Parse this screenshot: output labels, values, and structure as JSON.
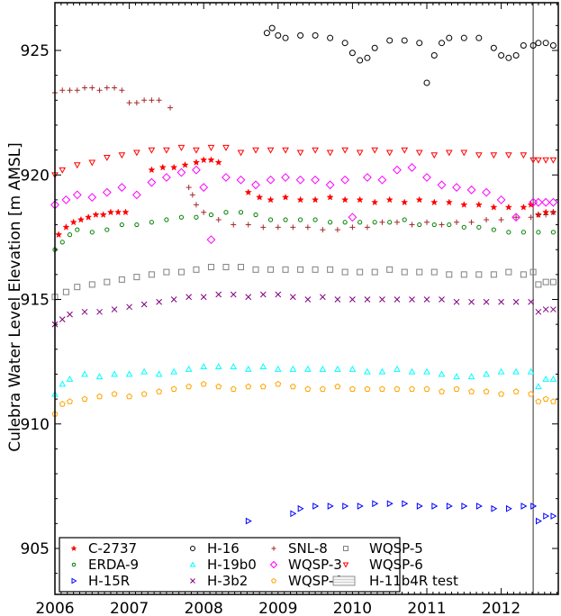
{
  "chart_data": {
    "type": "scatter",
    "title": "",
    "xlabel": "",
    "ylabel": "Culebra Water Level Elevation [m AMSL]",
    "xlim": [
      2006.0,
      2012.78
    ],
    "ylim": [
      903.1,
      927.0
    ],
    "xticks": [
      2006,
      2007,
      2008,
      2009,
      2010,
      2011,
      2012
    ],
    "xtick_labels": [
      "2006",
      "2007",
      "2008",
      "2009",
      "2010",
      "2011",
      "2012"
    ],
    "yticks": [
      905,
      910,
      915,
      920,
      925
    ],
    "ytick_labels": [
      "905",
      "910",
      "915",
      "920",
      "925"
    ],
    "grid": false,
    "legend_position": "lower left",
    "annotations": [
      {
        "type": "vertical-line",
        "x": 2012.43,
        "label": "H-11b4R test",
        "color": "#555555"
      }
    ],
    "series": [
      {
        "name": "C-2737",
        "marker": "star",
        "color": "#ff0000",
        "x": [
          2006.05,
          2006.15,
          2006.25,
          2006.35,
          2006.45,
          2006.55,
          2006.65,
          2006.75,
          2006.85,
          2006.95,
          2007.3,
          2007.45,
          2007.6,
          2007.75,
          2007.9,
          2008.0,
          2008.1,
          2008.2,
          2008.6,
          2008.75,
          2008.9,
          2009.1,
          2009.3,
          2009.5,
          2009.7,
          2009.9,
          2010.1,
          2010.3,
          2010.5,
          2010.7,
          2010.9,
          2011.1,
          2011.3,
          2011.5,
          2011.7,
          2011.9,
          2012.1,
          2012.3,
          2012.4,
          2012.5,
          2012.6,
          2012.7
        ],
        "y": [
          917.6,
          917.9,
          918.1,
          918.2,
          918.3,
          918.4,
          918.4,
          918.5,
          918.5,
          918.5,
          920.2,
          920.3,
          920.3,
          920.4,
          920.5,
          920.6,
          920.6,
          920.5,
          919.3,
          919.1,
          919.0,
          919.1,
          919.0,
          919.0,
          919.1,
          919.0,
          919.0,
          918.9,
          919.0,
          918.9,
          919.0,
          918.9,
          918.9,
          918.8,
          918.8,
          918.7,
          918.7,
          918.7,
          918.8,
          918.4,
          918.5,
          918.5
        ]
      },
      {
        "name": "ERDA-9",
        "marker": "hexagon",
        "color": "#008000",
        "x": [
          2006.0,
          2006.1,
          2006.2,
          2006.3,
          2006.5,
          2006.7,
          2006.9,
          2007.1,
          2007.3,
          2007.5,
          2007.7,
          2007.9,
          2008.1,
          2008.3,
          2008.5,
          2008.7,
          2008.9,
          2009.1,
          2009.3,
          2009.5,
          2009.7,
          2009.9,
          2010.1,
          2010.3,
          2010.5,
          2010.7,
          2010.9,
          2011.1,
          2011.3,
          2011.5,
          2011.7,
          2011.9,
          2012.1,
          2012.3,
          2012.5,
          2012.7
        ],
        "y": [
          917.0,
          917.3,
          917.6,
          917.8,
          917.7,
          917.8,
          918.0,
          918.0,
          918.1,
          918.2,
          918.3,
          918.3,
          918.4,
          918.5,
          918.5,
          918.4,
          918.2,
          918.2,
          918.2,
          918.2,
          918.1,
          918.1,
          918.1,
          918.1,
          918.1,
          918.2,
          918.0,
          918.0,
          918.0,
          917.9,
          917.9,
          917.8,
          917.7,
          917.7,
          917.7,
          917.7
        ]
      },
      {
        "name": "H-15R",
        "marker": "triangle-right",
        "color": "#0000ff",
        "x": [
          2008.6,
          2009.2,
          2009.3,
          2009.5,
          2009.7,
          2009.9,
          2010.1,
          2010.3,
          2010.5,
          2010.7,
          2010.9,
          2011.1,
          2011.3,
          2011.5,
          2011.7,
          2011.9,
          2012.1,
          2012.3,
          2012.43,
          2012.5,
          2012.6,
          2012.7
        ],
        "y": [
          906.1,
          906.4,
          906.6,
          906.7,
          906.7,
          906.7,
          906.7,
          906.8,
          906.8,
          906.8,
          906.7,
          906.7,
          906.7,
          906.7,
          906.7,
          906.6,
          906.6,
          906.7,
          906.7,
          906.1,
          906.3,
          906.3
        ]
      },
      {
        "name": "H-16",
        "marker": "circle",
        "color": "#000000",
        "x": [
          2008.85,
          2008.92,
          2009.0,
          2009.1,
          2009.3,
          2009.5,
          2009.7,
          2009.9,
          2010.0,
          2010.1,
          2010.2,
          2010.3,
          2010.5,
          2010.7,
          2010.9,
          2011.0,
          2011.1,
          2011.2,
          2011.3,
          2011.5,
          2011.7,
          2011.9,
          2012.0,
          2012.1,
          2012.2,
          2012.3,
          2012.43,
          2012.5,
          2012.6,
          2012.7
        ],
        "y": [
          925.7,
          925.9,
          925.6,
          925.5,
          925.6,
          925.6,
          925.5,
          925.3,
          924.9,
          924.6,
          924.7,
          925.1,
          925.4,
          925.4,
          925.3,
          923.7,
          924.8,
          925.3,
          925.5,
          925.5,
          925.5,
          925.1,
          924.8,
          924.7,
          924.8,
          925.2,
          925.2,
          925.3,
          925.3,
          925.2
        ]
      },
      {
        "name": "H-19b0",
        "marker": "triangle-up",
        "color": "#00ffff",
        "x": [
          2006.0,
          2006.1,
          2006.2,
          2006.4,
          2006.6,
          2006.8,
          2007.0,
          2007.2,
          2007.4,
          2007.6,
          2007.8,
          2008.0,
          2008.2,
          2008.4,
          2008.6,
          2008.8,
          2009.0,
          2009.2,
          2009.4,
          2009.6,
          2009.8,
          2010.0,
          2010.2,
          2010.4,
          2010.6,
          2010.8,
          2011.0,
          2011.2,
          2011.4,
          2011.6,
          2011.8,
          2012.0,
          2012.2,
          2012.4,
          2012.5,
          2012.6,
          2012.7
        ],
        "y": [
          911.2,
          911.6,
          911.8,
          912.0,
          911.9,
          912.0,
          912.0,
          912.1,
          912.0,
          912.1,
          912.2,
          912.3,
          912.3,
          912.3,
          912.2,
          912.3,
          912.2,
          912.2,
          912.2,
          912.2,
          912.2,
          912.2,
          912.1,
          912.1,
          912.2,
          912.1,
          912.1,
          912.0,
          911.9,
          911.9,
          912.0,
          912.1,
          912.1,
          912.1,
          911.5,
          911.8,
          911.8
        ]
      },
      {
        "name": "H-3b2",
        "marker": "x",
        "color": "#800080",
        "x": [
          2006.0,
          2006.1,
          2006.2,
          2006.4,
          2006.6,
          2006.8,
          2007.0,
          2007.2,
          2007.4,
          2007.6,
          2007.8,
          2008.0,
          2008.2,
          2008.4,
          2008.6,
          2008.8,
          2009.0,
          2009.2,
          2009.4,
          2009.6,
          2009.8,
          2010.0,
          2010.2,
          2010.4,
          2010.6,
          2010.8,
          2011.0,
          2011.2,
          2011.4,
          2011.6,
          2011.8,
          2012.0,
          2012.2,
          2012.4,
          2012.5,
          2012.6,
          2012.7
        ],
        "y": [
          914.0,
          914.2,
          914.4,
          914.5,
          914.5,
          914.6,
          914.7,
          914.8,
          914.9,
          915.0,
          915.1,
          915.1,
          915.2,
          915.2,
          915.1,
          915.2,
          915.2,
          915.1,
          915.0,
          915.1,
          915.0,
          915.0,
          915.0,
          915.0,
          915.0,
          915.0,
          915.0,
          915.0,
          914.9,
          914.9,
          914.9,
          914.9,
          914.9,
          914.9,
          914.5,
          914.6,
          914.6
        ]
      },
      {
        "name": "SNL-8",
        "marker": "plus",
        "color": "#a52a2a",
        "x": [
          2006.0,
          2006.1,
          2006.2,
          2006.3,
          2006.4,
          2006.5,
          2006.6,
          2006.7,
          2006.8,
          2006.9,
          2007.0,
          2007.1,
          2007.2,
          2007.3,
          2007.4,
          2007.55,
          2007.8,
          2007.85,
          2007.9,
          2008.0,
          2008.2,
          2008.4,
          2008.6,
          2008.8,
          2009.0,
          2009.2,
          2009.4,
          2009.6,
          2009.8,
          2010.0,
          2010.2,
          2010.4,
          2010.6,
          2010.8,
          2011.0,
          2011.2,
          2011.4,
          2011.6,
          2011.8,
          2012.0,
          2012.2,
          2012.4,
          2012.5,
          2012.6,
          2012.7
        ],
        "y": [
          923.3,
          923.4,
          923.4,
          923.4,
          923.5,
          923.5,
          923.4,
          923.5,
          923.5,
          923.4,
          922.9,
          922.9,
          923.0,
          923.0,
          923.0,
          922.7,
          919.5,
          919.2,
          918.8,
          918.5,
          918.2,
          918.0,
          918.0,
          917.9,
          917.9,
          917.9,
          917.9,
          917.8,
          917.8,
          917.9,
          917.9,
          918.1,
          918.1,
          918.0,
          918.1,
          918.0,
          918.1,
          918.1,
          918.2,
          918.2,
          918.3,
          918.3,
          918.4,
          918.4,
          918.5
        ]
      },
      {
        "name": "WQSP-3",
        "marker": "diamond",
        "color": "#ff00ff",
        "x": [
          2006.0,
          2006.15,
          2006.3,
          2006.5,
          2006.7,
          2006.9,
          2007.1,
          2007.3,
          2007.5,
          2007.7,
          2007.9,
          2008.0,
          2008.1,
          2008.3,
          2008.5,
          2008.7,
          2008.9,
          2009.1,
          2009.3,
          2009.5,
          2009.7,
          2009.9,
          2010.0,
          2010.2,
          2010.4,
          2010.6,
          2010.8,
          2011.0,
          2011.2,
          2011.4,
          2011.6,
          2011.8,
          2012.0,
          2012.2,
          2012.43,
          2012.5,
          2012.6,
          2012.7
        ],
        "y": [
          918.8,
          919.0,
          919.2,
          919.1,
          919.3,
          919.5,
          919.2,
          919.7,
          919.9,
          920.1,
          920.2,
          919.5,
          917.4,
          919.9,
          919.8,
          919.6,
          919.8,
          919.9,
          919.8,
          919.8,
          919.6,
          919.8,
          918.3,
          919.9,
          919.8,
          920.2,
          920.3,
          919.9,
          919.6,
          919.5,
          919.4,
          919.3,
          919.0,
          918.3,
          918.9,
          918.9,
          918.9,
          918.9
        ]
      },
      {
        "name": "WQSP-4",
        "marker": "pentagon",
        "color": "#ffa500",
        "x": [
          2006.0,
          2006.1,
          2006.2,
          2006.4,
          2006.6,
          2006.8,
          2007.0,
          2007.2,
          2007.4,
          2007.6,
          2007.8,
          2008.0,
          2008.2,
          2008.4,
          2008.6,
          2008.8,
          2009.0,
          2009.2,
          2009.4,
          2009.6,
          2009.8,
          2010.0,
          2010.2,
          2010.4,
          2010.6,
          2010.8,
          2011.0,
          2011.2,
          2011.4,
          2011.6,
          2011.8,
          2012.0,
          2012.2,
          2012.4,
          2012.5,
          2012.6,
          2012.7
        ],
        "y": [
          910.4,
          910.8,
          910.9,
          911.0,
          911.1,
          911.2,
          911.1,
          911.2,
          911.3,
          911.4,
          911.5,
          911.6,
          911.5,
          911.4,
          911.5,
          911.5,
          911.6,
          911.5,
          911.4,
          911.4,
          911.5,
          911.4,
          911.4,
          911.4,
          911.4,
          911.4,
          911.4,
          911.3,
          911.4,
          911.3,
          911.3,
          911.2,
          911.3,
          911.2,
          910.9,
          911.0,
          910.9
        ]
      },
      {
        "name": "WQSP-5",
        "marker": "square",
        "color": "#808080",
        "x": [
          2006.0,
          2006.15,
          2006.3,
          2006.5,
          2006.7,
          2006.9,
          2007.1,
          2007.3,
          2007.5,
          2007.7,
          2007.9,
          2008.1,
          2008.3,
          2008.5,
          2008.7,
          2008.9,
          2009.1,
          2009.3,
          2009.5,
          2009.7,
          2009.9,
          2010.1,
          2010.3,
          2010.5,
          2010.7,
          2010.9,
          2011.1,
          2011.3,
          2011.5,
          2011.7,
          2011.9,
          2012.1,
          2012.3,
          2012.43,
          2012.5,
          2012.6,
          2012.7
        ],
        "y": [
          915.1,
          915.3,
          915.5,
          915.6,
          915.7,
          915.8,
          915.9,
          916.0,
          916.1,
          916.1,
          916.2,
          916.3,
          916.3,
          916.3,
          916.2,
          916.2,
          916.2,
          916.2,
          916.2,
          916.2,
          916.1,
          916.1,
          916.1,
          916.2,
          916.1,
          916.1,
          916.1,
          916.0,
          916.0,
          916.0,
          916.0,
          916.1,
          916.0,
          916.1,
          915.6,
          915.7,
          915.7
        ]
      },
      {
        "name": "WQSP-6",
        "marker": "triangle-down",
        "color": "#ff0000",
        "x": [
          2006.0,
          2006.1,
          2006.3,
          2006.5,
          2006.7,
          2006.9,
          2007.1,
          2007.3,
          2007.5,
          2007.7,
          2007.9,
          2008.1,
          2008.3,
          2008.5,
          2008.7,
          2008.9,
          2009.1,
          2009.3,
          2009.5,
          2009.7,
          2009.9,
          2010.1,
          2010.3,
          2010.5,
          2010.7,
          2010.9,
          2011.1,
          2011.3,
          2011.5,
          2011.7,
          2011.9,
          2012.1,
          2012.3,
          2012.43,
          2012.5,
          2012.6,
          2012.7
        ],
        "y": [
          920.0,
          920.2,
          920.4,
          920.5,
          920.7,
          920.8,
          920.9,
          921.0,
          921.0,
          921.1,
          921.0,
          921.1,
          921.1,
          920.9,
          921.0,
          921.0,
          921.0,
          920.9,
          921.0,
          920.9,
          921.0,
          920.9,
          921.0,
          920.9,
          921.0,
          920.9,
          920.8,
          920.9,
          920.9,
          920.8,
          920.8,
          920.8,
          920.8,
          920.6,
          920.6,
          920.6,
          920.6
        ]
      }
    ]
  },
  "legend": {
    "items": [
      {
        "label": "C-2737"
      },
      {
        "label": "ERDA-9"
      },
      {
        "label": "H-15R"
      },
      {
        "label": "H-16"
      },
      {
        "label": "H-19b0"
      },
      {
        "label": "H-3b2"
      },
      {
        "label": "SNL-8"
      },
      {
        "label": "WQSP-3"
      },
      {
        "label": "WQSP-4"
      },
      {
        "label": "WQSP-5"
      },
      {
        "label": "WQSP-6"
      },
      {
        "label": "H-11b4R test"
      }
    ]
  },
  "axes": {
    "ylabel": "Culebra Water Level Elevation [m AMSL]"
  }
}
